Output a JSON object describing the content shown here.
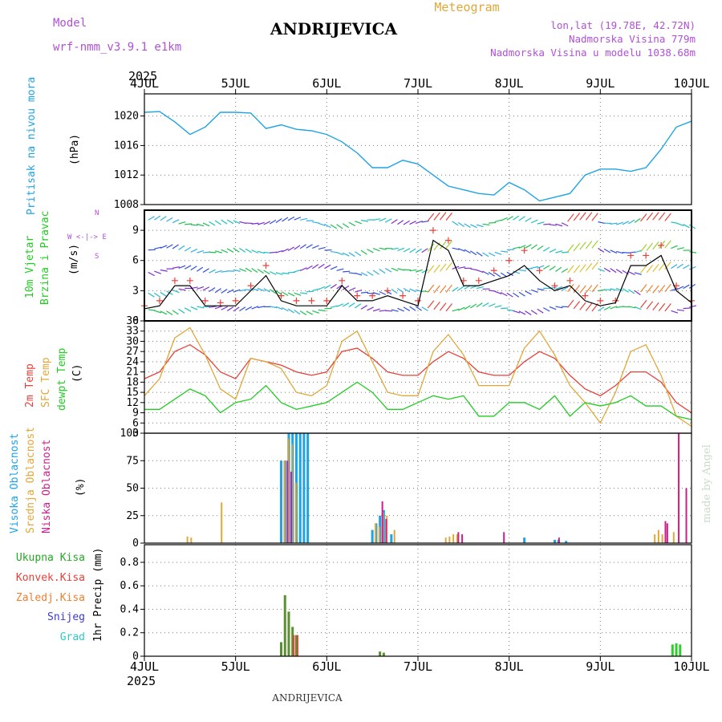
{
  "header": {
    "model_label": "Model",
    "model_name": "wrf-nmm_v3.9.1 e1km",
    "station": "ANDRIJEVICA",
    "product": "Meteogram",
    "coords": "lon,lat (19.78E, 42.72N)",
    "elevation": "Nadmorska Visina 779m",
    "model_elevation": "Nadmorska Visina u modelu 1038.68m",
    "footer_station": "ANDRIJEVICA",
    "credit": "made by Angel"
  },
  "colors": {
    "pressure": "#1ea3e6",
    "wind_speed": "#000000",
    "gust": "#e8413a",
    "temp2m": "#e8413a",
    "sfc_temp": "#e0a83a",
    "dewpt": "#22cc22",
    "cloud_high": "#1ea3e6",
    "cloud_mid": "#e0a83a",
    "cloud_low": "#cc1f8a",
    "precip_total": "#22aa22",
    "precip_conv": "#e8413a",
    "precip_frozen": "#f08030",
    "precip_snow": "#3a3ad8",
    "precip_hail": "#30c8c8",
    "model_purple": "#b050d8"
  },
  "chart_data": [
    {
      "type": "line",
      "panel": "pressure",
      "year": "2025",
      "x_labels": [
        "4JUL",
        "5JUL",
        "6JUL",
        "7JUL",
        "8JUL",
        "9JUL",
        "10JUL"
      ],
      "x_unit": "hours since 4JUL 00",
      "ylabel_main": "Pritisak na nivou mora",
      "ylabel_unit": "(hPa)",
      "ylim": [
        1008,
        1023
      ],
      "yticks": [
        1008,
        1012,
        1016,
        1020
      ],
      "series": [
        {
          "name": "Pritisak na nivou mora",
          "x": [
            0,
            4,
            8,
            12,
            16,
            20,
            24,
            28,
            32,
            36,
            40,
            44,
            48,
            52,
            56,
            60,
            64,
            68,
            72,
            76,
            80,
            84,
            88,
            92,
            96,
            100,
            104,
            108,
            112,
            116,
            120,
            124,
            128,
            132,
            136,
            140,
            144
          ],
          "values": [
            1020.5,
            1020.6,
            1019.2,
            1017.5,
            1018.5,
            1020.5,
            1020.5,
            1020.4,
            1018.3,
            1018.8,
            1018.2,
            1018.0,
            1017.5,
            1016.5,
            1015.0,
            1013.0,
            1013.0,
            1014.0,
            1013.5,
            1012.0,
            1010.5,
            1010.0,
            1009.5,
            1009.3,
            1011.0,
            1010.0,
            1008.5,
            1009.0,
            1009.5,
            1012.0,
            1012.8,
            1012.8,
            1012.5,
            1013.0,
            1015.5,
            1018.5,
            1019.3
          ]
        }
      ]
    },
    {
      "type": "line",
      "panel": "wind",
      "labels": [
        "10m Vjetar",
        "Brzina i Pravac"
      ],
      "ylabel_unit": "(m/s)",
      "compass": [
        "W <-|-> E",
        "N",
        "S"
      ],
      "ylim": [
        0,
        11
      ],
      "yticks": [
        0,
        3,
        6,
        9
      ],
      "series": [
        {
          "name": "Brzina",
          "x": [
            0,
            4,
            8,
            12,
            16,
            20,
            24,
            28,
            32,
            36,
            40,
            44,
            48,
            52,
            56,
            60,
            64,
            68,
            72,
            76,
            80,
            84,
            88,
            92,
            96,
            100,
            104,
            108,
            112,
            116,
            120,
            124,
            128,
            132,
            136,
            140,
            144
          ],
          "values": [
            1.2,
            1.5,
            3.5,
            3.5,
            1.5,
            1.5,
            1.5,
            3.0,
            4.5,
            2.0,
            1.5,
            1.5,
            1.5,
            3.5,
            2.0,
            2.0,
            2.5,
            2.0,
            1.5,
            8.0,
            7.0,
            3.5,
            3.5,
            4.0,
            4.5,
            5.5,
            4.0,
            3.0,
            3.5,
            2.0,
            1.5,
            1.8,
            5.5,
            5.5,
            6.5,
            3.0,
            1.8
          ]
        },
        {
          "name": "Udari",
          "x": [
            0,
            4,
            8,
            12,
            16,
            20,
            24,
            28,
            32,
            36,
            40,
            44,
            48,
            52,
            56,
            60,
            64,
            68,
            72,
            76,
            80,
            84,
            88,
            92,
            96,
            100,
            104,
            108,
            112,
            116,
            120,
            124,
            128,
            132,
            136,
            140,
            144
          ],
          "values": [
            1.5,
            2.0,
            4.0,
            4.0,
            2.0,
            1.8,
            2.0,
            3.5,
            5.5,
            2.5,
            2.0,
            2.0,
            2.0,
            4.0,
            2.5,
            2.5,
            3.0,
            2.5,
            2.0,
            9.0,
            8.0,
            4.0,
            4.0,
            5.0,
            6.0,
            7.0,
            5.0,
            3.5,
            4.0,
            2.5,
            2.0,
            2.0,
            6.5,
            6.5,
            7.5,
            3.5,
            2.0
          ]
        }
      ]
    },
    {
      "type": "line",
      "panel": "temperature",
      "labels": [
        "2m Temp",
        "SFC Temp",
        "dewpt Temp"
      ],
      "ylabel_unit": "(C)",
      "ylim": [
        3,
        36
      ],
      "yticks": [
        3,
        6,
        9,
        12,
        15,
        18,
        21,
        24,
        27,
        30,
        33,
        36
      ],
      "series": [
        {
          "name": "2m Temp",
          "x": [
            0,
            4,
            8,
            12,
            16,
            20,
            24,
            28,
            32,
            36,
            40,
            44,
            48,
            52,
            56,
            60,
            64,
            68,
            72,
            76,
            80,
            84,
            88,
            92,
            96,
            100,
            104,
            108,
            112,
            116,
            120,
            124,
            128,
            132,
            136,
            140,
            144
          ],
          "values": [
            19,
            21,
            27,
            29,
            26,
            21,
            19,
            25,
            24,
            23,
            21,
            20,
            21,
            27,
            28,
            25,
            21,
            20,
            20,
            24,
            27,
            25,
            21,
            20,
            20,
            24,
            27,
            25,
            20,
            16,
            14,
            17,
            21,
            21,
            18,
            12,
            9
          ]
        },
        {
          "name": "SFC Temp",
          "x": [
            0,
            4,
            8,
            12,
            16,
            20,
            24,
            28,
            32,
            36,
            40,
            44,
            48,
            52,
            56,
            60,
            64,
            68,
            72,
            76,
            80,
            84,
            88,
            92,
            96,
            100,
            104,
            108,
            112,
            116,
            120,
            124,
            128,
            132,
            136,
            140,
            144
          ],
          "values": [
            14,
            19,
            31,
            34,
            26,
            16,
            13,
            25,
            24,
            22,
            15,
            14,
            17,
            30,
            33,
            24,
            15,
            14,
            14,
            27,
            32,
            26,
            17,
            17,
            17,
            28,
            33,
            26,
            17,
            12,
            6,
            15,
            27,
            29,
            20,
            8,
            5
          ]
        },
        {
          "name": "dewpt Temp",
          "x": [
            0,
            4,
            8,
            12,
            16,
            20,
            24,
            28,
            32,
            36,
            40,
            44,
            48,
            52,
            56,
            60,
            64,
            68,
            72,
            76,
            80,
            84,
            88,
            92,
            96,
            100,
            104,
            108,
            112,
            116,
            120,
            124,
            128,
            132,
            136,
            140,
            144
          ],
          "values": [
            10,
            10,
            13,
            16,
            14,
            9,
            12,
            13,
            17,
            12,
            10,
            11,
            12,
            15,
            18,
            15,
            10,
            10,
            12,
            14,
            13,
            14,
            8,
            8,
            12,
            12,
            10,
            14,
            8,
            12,
            11,
            12,
            14,
            11,
            11,
            8,
            7
          ]
        }
      ]
    },
    {
      "type": "bar",
      "panel": "cloud",
      "labels": [
        "Visoka Oblacnost",
        "Srednja Oblacnost",
        "Niska Oblacnost"
      ],
      "ylabel_unit": "(%)",
      "ylim": [
        0,
        100
      ],
      "yticks": [
        0,
        25,
        50,
        75,
        100
      ],
      "series": [
        {
          "name": "Visoka Oblacnost",
          "x": [
            36,
            37,
            38,
            39,
            40,
            41,
            42,
            43,
            60,
            61,
            62,
            63,
            65,
            100,
            108,
            109,
            111
          ],
          "values": [
            75,
            75,
            100,
            100,
            100,
            100,
            100,
            100,
            12,
            18,
            25,
            30,
            8,
            5,
            3,
            3,
            2
          ]
        },
        {
          "name": "Srednja Oblacnost",
          "x": [
            11,
            12,
            20,
            36.5,
            37.5,
            38.5,
            39.5,
            60.5,
            61.5,
            62.5,
            63.5,
            65.5,
            79,
            80,
            81,
            82,
            134,
            135,
            136,
            139
          ],
          "values": [
            6,
            5,
            37,
            75,
            95,
            90,
            55,
            18,
            15,
            28,
            25,
            12,
            5,
            6,
            8,
            8,
            8,
            12,
            8,
            10
          ]
        },
        {
          "name": "Niska Oblacnost",
          "x": [
            37,
            38,
            62,
            63,
            82,
            83,
            94,
            108.5,
            136.5,
            137,
            140,
            142
          ],
          "values": [
            75,
            65,
            38,
            22,
            10,
            8,
            10,
            5,
            20,
            18,
            100,
            50
          ]
        }
      ]
    },
    {
      "type": "bar",
      "panel": "precip",
      "labels": [
        "Ukupna Kisa",
        "Konvek.Kisa",
        "Zaledj.Kisa",
        "Snijeg",
        "Grad"
      ],
      "ylabel_unit": "1hr Precip (mm)",
      "ylim": [
        0,
        0.95
      ],
      "yticks": [
        0,
        0.2,
        0.4,
        0.6,
        0.8
      ],
      "x_labels": [
        "4JUL",
        "5JUL",
        "6JUL",
        "7JUL",
        "8JUL",
        "9JUL",
        "10JUL"
      ],
      "year": "2025",
      "series": [
        {
          "name": "Ukupna Kisa",
          "x": [
            36,
            37,
            38,
            39,
            40,
            62,
            63,
            139,
            140,
            141
          ],
          "values": [
            0.12,
            0.52,
            0.38,
            0.25,
            0.18,
            0.04,
            0.03,
            0.1,
            0.11,
            0.1
          ]
        }
      ]
    }
  ]
}
